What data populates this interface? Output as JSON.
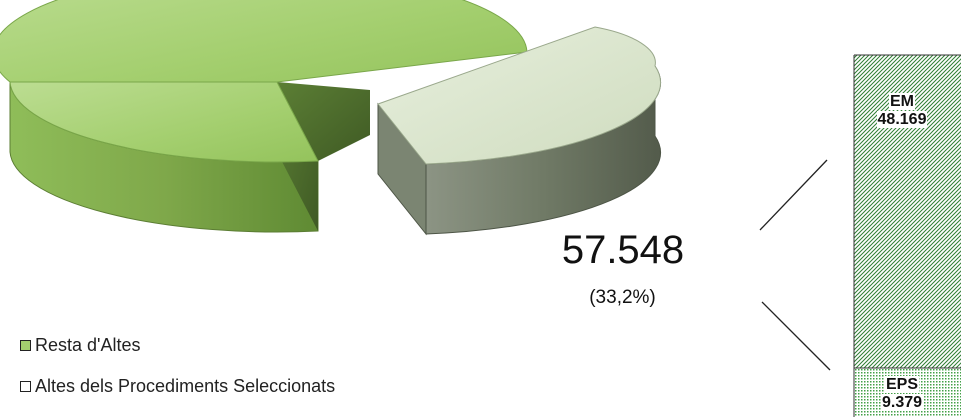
{
  "chart_data": [
    {
      "type": "pie",
      "style": "3d-exploded",
      "slices": [
        {
          "label": "Resta d'Altes",
          "value": 115790,
          "percent": 66.8,
          "color": "#9ccb6a"
        },
        {
          "label": "Altes dels Procediments Seleccionats",
          "value": 57548,
          "percent": 33.2,
          "color": "#d6e4c7",
          "exploded": true
        }
      ],
      "annotation": {
        "value": "57.548",
        "percent": "(33,2%)"
      },
      "legend": {
        "placement": "bottom-left"
      }
    },
    {
      "type": "bar",
      "stacked": true,
      "categories": [
        "Altes dels Procediments Seleccionats"
      ],
      "series": [
        {
          "name": "EM",
          "value": 48169,
          "display_value": "48.169",
          "color": "#2e7d32"
        },
        {
          "name": "EPS",
          "value": 9379,
          "display_value": "9.379",
          "color": "#66bb6a"
        }
      ]
    }
  ],
  "colors": {
    "pie_main_top": "#a4cf6f",
    "pie_main_side": "#6f9a3e",
    "pie_main_inner": "#4c6b2c",
    "pie_slice_top": "#d9e6cb",
    "pie_slice_side": "#66705e",
    "bar_pattern": "#2e7d32"
  },
  "icons": {
    "legend_swatch": "square-outline"
  }
}
